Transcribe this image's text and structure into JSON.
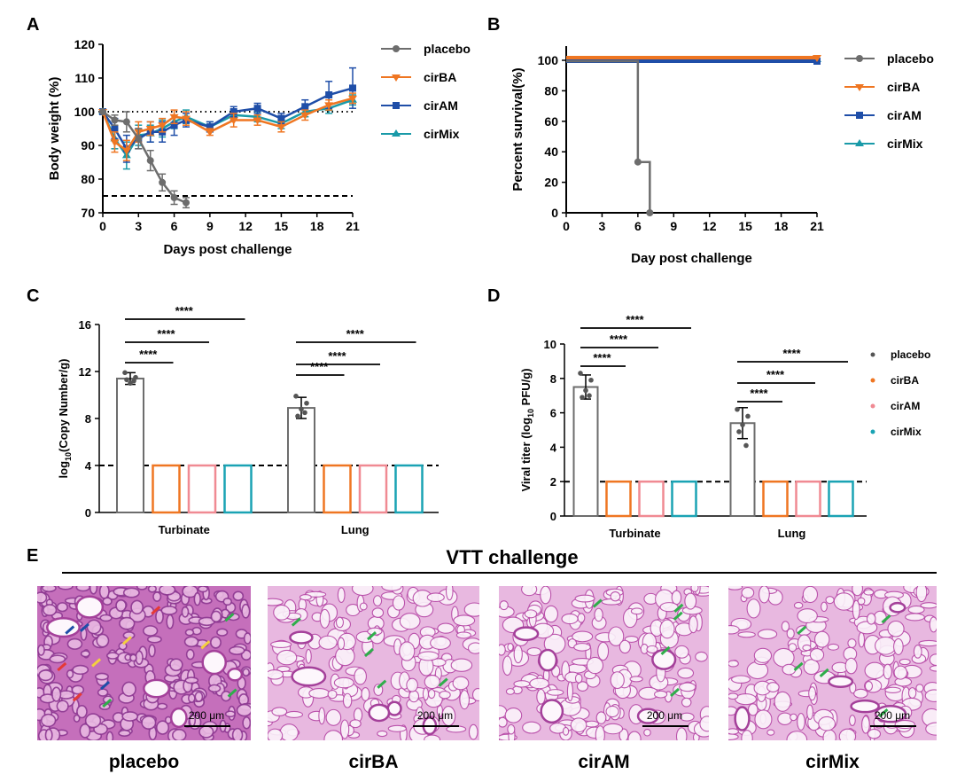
{
  "colors": {
    "placebo": "#6d6d6d",
    "cirBA": "#ef7622",
    "cirAM": "#1f4ea8",
    "cirMix": "#199aa8",
    "cirAM_bar": "#f08a93",
    "cirMix_bar": "#1aa3b4",
    "cirMix_histo": "#c84fa8",
    "histo_bg": "#e8b8e0",
    "histo_tissue": "#b648a6",
    "histo_light": "#f3d5ee"
  },
  "panels": {
    "A": {
      "label": "A"
    },
    "B": {
      "label": "B"
    },
    "C": {
      "label": "C"
    },
    "D": {
      "label": "D"
    },
    "E": {
      "label": "E",
      "title": "VTT challenge"
    }
  },
  "chart_data": [
    {
      "id": "A",
      "type": "line",
      "xlabel": "Days post challenge",
      "ylabel": "Body weight (%)",
      "xticks": [
        0,
        3,
        6,
        9,
        12,
        15,
        18,
        21
      ],
      "yticks": [
        70,
        80,
        90,
        100,
        110,
        120
      ],
      "xlim": [
        0,
        21
      ],
      "ylim": [
        70,
        120
      ],
      "reference_lines": [
        {
          "y": 100,
          "style": "dotted"
        },
        {
          "y": 75,
          "style": "dashed"
        }
      ],
      "series": [
        {
          "name": "placebo",
          "marker": "circle",
          "x": [
            0,
            1,
            2,
            3,
            4,
            5,
            6,
            7
          ],
          "y": [
            100,
            97.5,
            97,
            92,
            85.5,
            79,
            74.5,
            73
          ],
          "err": [
            0,
            1.5,
            3,
            3,
            3,
            2.5,
            2,
            1.5
          ]
        },
        {
          "name": "cirBA",
          "marker": "triangle-down",
          "x": [
            0,
            1,
            2,
            3,
            4,
            5,
            6,
            7,
            9,
            11,
            13,
            15,
            17,
            19,
            21
          ],
          "y": [
            100,
            91,
            88.5,
            94,
            95,
            96,
            98.5,
            98,
            94,
            97.5,
            97.5,
            95.5,
            99,
            102,
            104
          ],
          "err": [
            0,
            3,
            3,
            3,
            2,
            2,
            2,
            2,
            1,
            2,
            1.5,
            1.5,
            1.5,
            1.5,
            1.5
          ]
        },
        {
          "name": "cirAM",
          "marker": "square",
          "x": [
            0,
            1,
            2,
            3,
            4,
            5,
            6,
            7,
            9,
            11,
            13,
            15,
            17,
            19,
            21
          ],
          "y": [
            100,
            95,
            89,
            92,
            94,
            94,
            96,
            97.5,
            95.5,
            100,
            101,
            98,
            101.5,
            105,
            107
          ],
          "err": [
            0,
            3,
            4,
            3,
            3,
            3,
            3,
            2,
            1.5,
            1.5,
            1.5,
            1.5,
            2,
            4,
            6
          ]
        },
        {
          "name": "cirMix",
          "marker": "triangle-up",
          "x": [
            0,
            1,
            2,
            3,
            4,
            5,
            6,
            7,
            9,
            11,
            13,
            15,
            17,
            19,
            21
          ],
          "y": [
            100,
            92,
            87,
            93,
            93.5,
            95,
            97,
            98.5,
            95.5,
            99,
            98.5,
            96.5,
            100,
            101,
            103.5
          ],
          "err": [
            0,
            3,
            4,
            3,
            2.5,
            2.5,
            2,
            2,
            1.5,
            1.5,
            1.5,
            1.5,
            1.5,
            1.5,
            1.5
          ]
        }
      ],
      "legend": [
        "placebo",
        "cirBA",
        "cirAM",
        "cirMix"
      ]
    },
    {
      "id": "B",
      "type": "line",
      "xlabel": "Day post challenge",
      "ylabel": "Percent survival(%)",
      "xticks": [
        0,
        3,
        6,
        9,
        12,
        15,
        18,
        21
      ],
      "yticks": [
        0,
        20,
        40,
        60,
        80,
        100
      ],
      "xlim": [
        0,
        21
      ],
      "ylim": [
        0,
        100
      ],
      "series": [
        {
          "name": "placebo",
          "marker": "circle",
          "step": true,
          "x": [
            0,
            6,
            6,
            7,
            7
          ],
          "y": [
            100,
            100,
            33.3,
            33.3,
            0
          ],
          "points": [
            [
              6,
              33.3
            ],
            [
              7,
              0
            ]
          ]
        },
        {
          "name": "cirBA",
          "marker": "triangle-down",
          "step": true,
          "x": [
            0,
            21
          ],
          "y": [
            100,
            100
          ],
          "points": [
            [
              21,
              100
            ]
          ]
        },
        {
          "name": "cirAM",
          "marker": "square",
          "step": true,
          "x": [
            0,
            21
          ],
          "y": [
            100,
            100
          ],
          "points": [
            [
              21,
              100
            ]
          ]
        },
        {
          "name": "cirMix",
          "marker": "triangle-up",
          "step": true,
          "x": [
            0,
            21
          ],
          "y": [
            100,
            100
          ],
          "points": [
            [
              21,
              100
            ]
          ]
        }
      ],
      "legend": [
        "placebo",
        "cirBA",
        "cirAM",
        "cirMix"
      ]
    },
    {
      "id": "C",
      "type": "bar",
      "ylabel_prefix": "log",
      "ylabel_sub": "10",
      "ylabel_suffix": "(Copy Number/g)",
      "yticks": [
        0,
        4,
        8,
        12,
        16
      ],
      "ylim": [
        0,
        16
      ],
      "limit_line": 4,
      "groups": [
        "Turbinate",
        "Lung"
      ],
      "series": [
        {
          "name": "placebo",
          "values": [
            11.4,
            8.9
          ],
          "err": [
            0.5,
            0.9
          ],
          "points": [
            [
              11.9,
              11.5,
              11.0,
              11.3,
              11.2
            ],
            [
              9.9,
              9.3,
              8.8,
              8.2,
              8.5
            ]
          ]
        },
        {
          "name": "cirBA",
          "values": [
            4,
            4
          ],
          "err": [
            0,
            0
          ]
        },
        {
          "name": "cirAM",
          "values": [
            4,
            4
          ],
          "err": [
            0,
            0
          ]
        },
        {
          "name": "cirMix",
          "values": [
            4,
            4
          ],
          "err": [
            0,
            0
          ]
        }
      ],
      "significance": "****"
    },
    {
      "id": "D",
      "type": "bar",
      "ylabel_prefix": "Viral titer (log",
      "ylabel_sub": "10",
      "ylabel_suffix": " PFU/g)",
      "yticks": [
        0,
        2,
        4,
        6,
        8,
        10
      ],
      "ylim": [
        0,
        10
      ],
      "limit_line": 2,
      "groups": [
        "Turbinate",
        "Lung"
      ],
      "series": [
        {
          "name": "placebo",
          "values": [
            7.5,
            5.4
          ],
          "err": [
            0.7,
            0.9
          ],
          "points": [
            [
              8.3,
              7.9,
              7.3,
              6.9,
              7.0
            ],
            [
              6.2,
              5.8,
              5.3,
              4.9,
              4.1
            ]
          ]
        },
        {
          "name": "cirBA",
          "values": [
            2,
            2
          ],
          "err": [
            0,
            0
          ]
        },
        {
          "name": "cirAM",
          "values": [
            2,
            2
          ],
          "err": [
            0,
            0
          ]
        },
        {
          "name": "cirMix",
          "values": [
            2,
            2
          ],
          "err": [
            0,
            0
          ]
        }
      ],
      "significance": "****",
      "legend": [
        "placebo",
        "cirBA",
        "cirAM",
        "cirMix"
      ]
    }
  ],
  "histology": {
    "title": "VTT challenge",
    "scale_label": "200 μm",
    "images": [
      {
        "name": "placebo"
      },
      {
        "name": "cirBA"
      },
      {
        "name": "cirAM"
      },
      {
        "name": "cirMix"
      }
    ]
  }
}
